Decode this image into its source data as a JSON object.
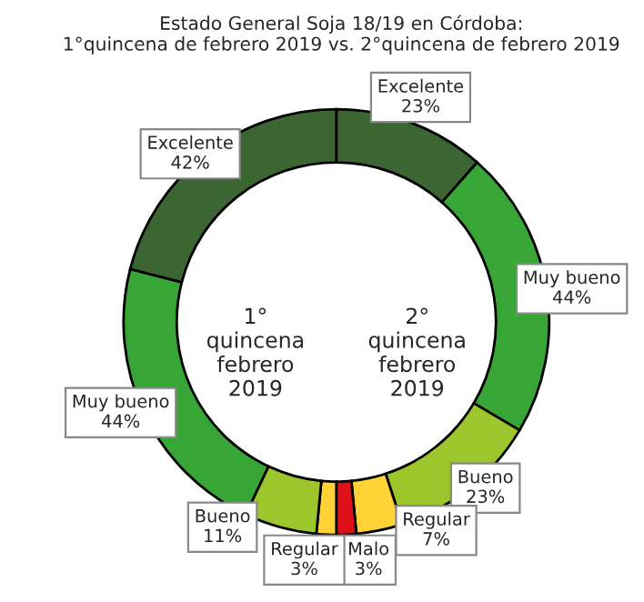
{
  "chart_data": {
    "type": "donut",
    "title": "Estado General Soja 18/19 en Córdoba:\n1°quincena de febrero 2019 vs. 2°quincena de febrero 2019",
    "annotations": [
      "1°\nquincena\nfebrero\n2019",
      "2°\nquincena\nfebrero\n2019"
    ],
    "categories": [
      "Excelente",
      "Muy bueno",
      "Bueno",
      "Regular",
      "Malo",
      "Regular",
      "Bueno",
      "Muy bueno",
      "Excelente"
    ],
    "values": [
      23,
      44,
      23,
      7,
      3,
      3,
      11,
      44,
      42
    ],
    "value_labels": [
      "23%",
      "44%",
      "23%",
      "7%",
      "3%",
      "3%",
      "11%",
      "44%",
      "42%"
    ],
    "colors": [
      "#3b6632",
      "#37a637",
      "#9dc62d",
      "#ffd335",
      "#e0101a",
      "#ffd335",
      "#9dc62d",
      "#37a637",
      "#3b6632"
    ]
  }
}
